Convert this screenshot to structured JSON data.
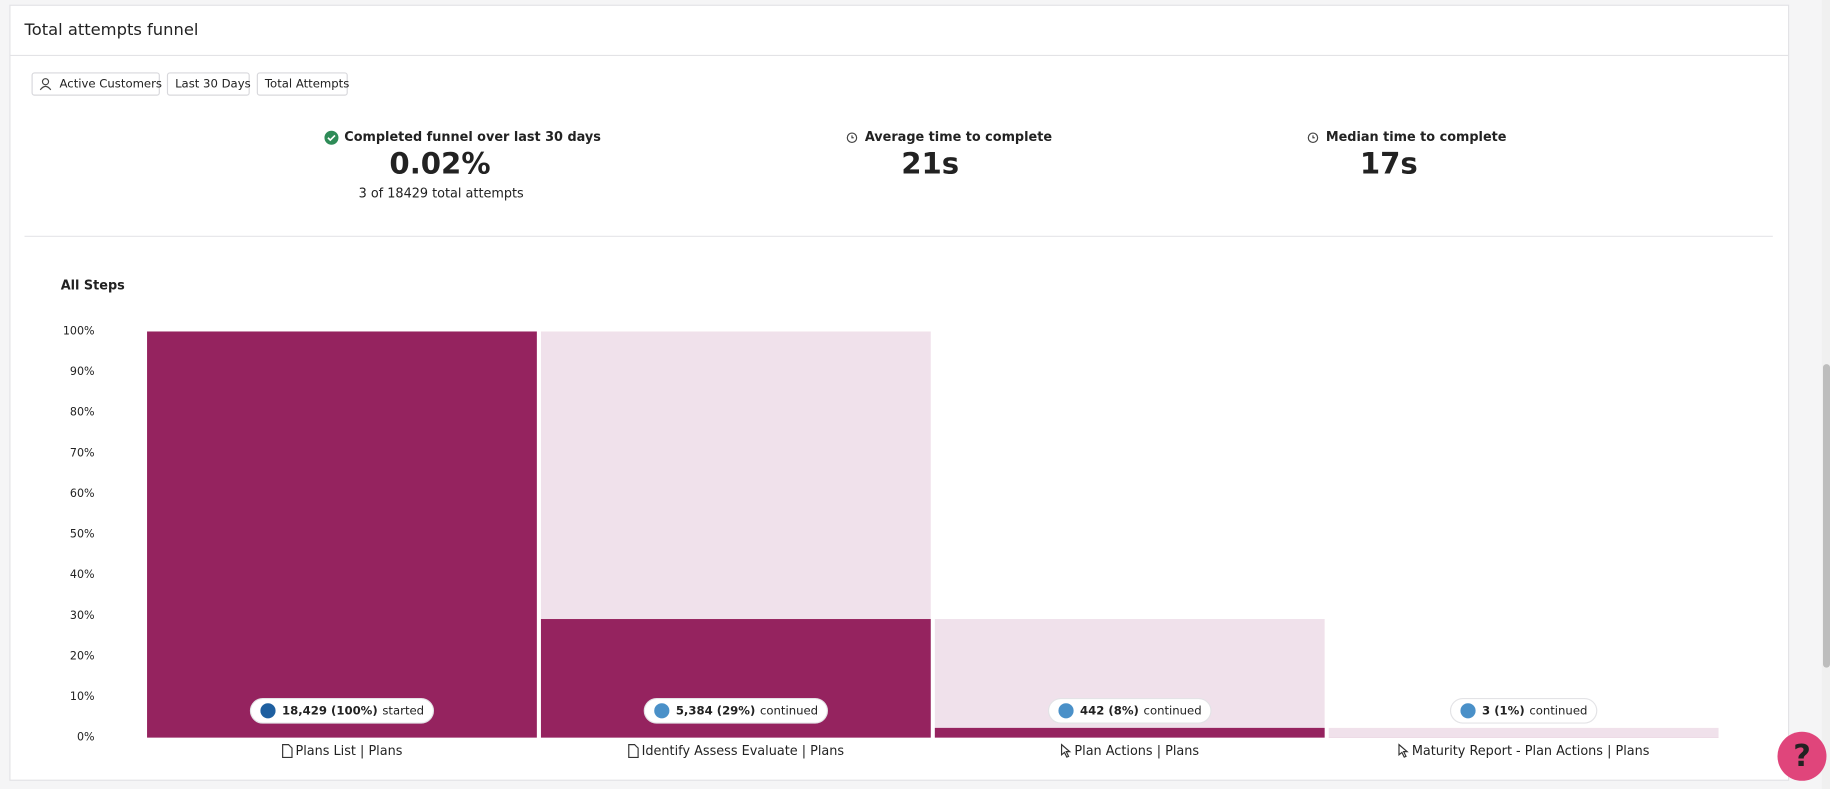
{
  "header": {
    "title": "Total attempts funnel"
  },
  "filters": [
    "Active Customers",
    "Last 30 Days",
    "Total Attempts"
  ],
  "stats": [
    {
      "label": "Completed funnel over last 30 days",
      "value": "0.02%",
      "sub": "3 of 18429 total attempts"
    },
    {
      "label": "Average time to complete",
      "value": "21s"
    },
    {
      "label": "Median time to complete",
      "value": "17s"
    }
  ],
  "chart_data": {
    "type": "funnel",
    "title": "All Steps",
    "categories": [
      "Plans List | Plans",
      "Identify Assess Evaluate | Plans",
      "Plan Actions | Plans",
      "Maturity Report - Plan Actions | Plans"
    ],
    "step_types": [
      "page",
      "page",
      "click",
      "click"
    ],
    "values": [
      100,
      29.2,
      2.4,
      0.02
    ],
    "pill_labels": [
      "18,429 (100%)",
      "5,384 (29%)",
      "442 (8%)",
      "3 (1%)"
    ],
    "pill_suffixes": [
      "started",
      "continued",
      "continued",
      "continued"
    ],
    "color": "#95235f",
    "drop_color": "#f0e1eb",
    "ylim": [
      0,
      100
    ],
    "yticks": [
      {
        "value": 0,
        "label": "0%"
      },
      {
        "value": 10,
        "label": "10%"
      },
      {
        "value": 20,
        "label": "20%"
      },
      {
        "value": 30,
        "label": "30%"
      },
      {
        "value": 40,
        "label": "40%"
      },
      {
        "value": 50,
        "label": "50%"
      },
      {
        "value": 60,
        "label": "60%"
      },
      {
        "value": 70,
        "label": "70%"
      },
      {
        "value": 80,
        "label": "80%"
      },
      {
        "value": 90,
        "label": "90%"
      },
      {
        "value": 100,
        "label": "100%"
      }
    ]
  }
}
